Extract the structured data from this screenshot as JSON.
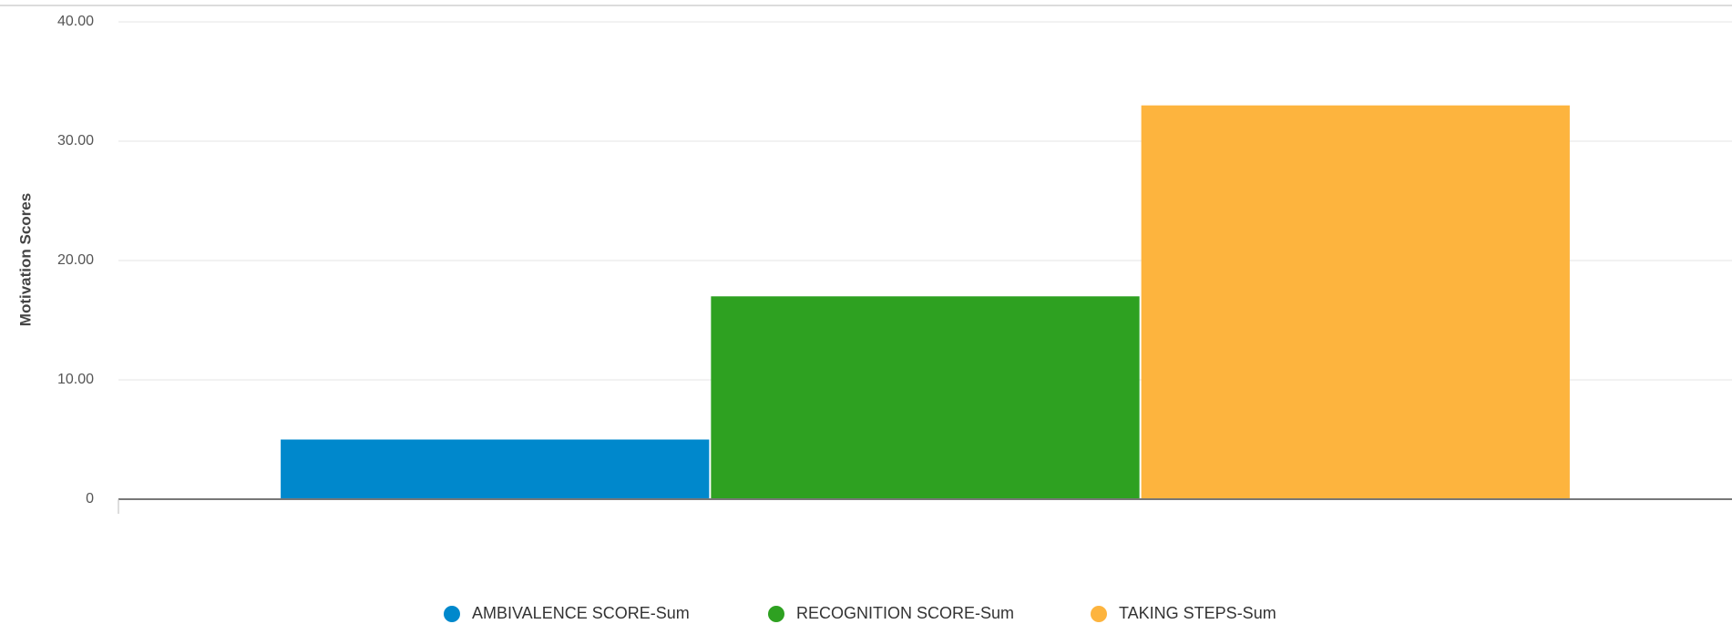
{
  "chart_data": {
    "type": "bar",
    "y_label": "Motivation Scores",
    "categories": [
      null
    ],
    "series": [
      {
        "name": "AMBIVALENCE SCORE-Sum",
        "color": "#0088cc",
        "values": [
          5
        ]
      },
      {
        "name": "RECOGNITION SCORE-Sum",
        "color": "#2ea121",
        "values": [
          17
        ]
      },
      {
        "name": "TAKING STEPS-Sum",
        "color": "#fdb43e",
        "values": [
          33
        ]
      }
    ],
    "ylim": [
      0,
      40
    ],
    "yticks": [
      0,
      {
        "value": 10,
        "label": "10.00"
      },
      {
        "value": 20,
        "label": "20.00"
      },
      {
        "value": 30,
        "label": "30.00"
      },
      {
        "value": 40,
        "label": "40.00"
      }
    ],
    "grid": true,
    "legend": "bottom"
  }
}
